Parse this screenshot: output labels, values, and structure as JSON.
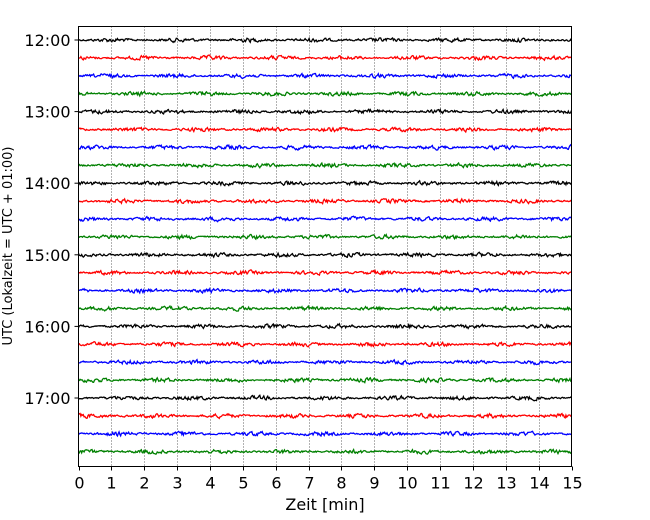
{
  "chart_data": {
    "type": "line",
    "description_kind": "helicorder seismogram",
    "xlabel": "Zeit  [min]",
    "ylabel": "UTC (Lokalzeit = UTC + 01:00)",
    "xlim": [
      0,
      15
    ],
    "x_ticks": [
      "0",
      "1",
      "2",
      "3",
      "4",
      "5",
      "6",
      "7",
      "8",
      "9",
      "10",
      "11",
      "12",
      "13",
      "14",
      "15"
    ],
    "y_tick_labels": [
      "12:00",
      "13:00",
      "14:00",
      "15:00",
      "16:00",
      "17:00"
    ],
    "grid": "vertical dotted lines at each minute",
    "traces_per_hour": 4,
    "trace_minutes": 15,
    "trace_colors": [
      "#000000",
      "#ff0000",
      "#0000ff",
      "#008000"
    ],
    "traces": [
      {
        "start": "12:00",
        "color": "#000000"
      },
      {
        "start": "12:15",
        "color": "#ff0000"
      },
      {
        "start": "12:30",
        "color": "#0000ff"
      },
      {
        "start": "12:45",
        "color": "#008000"
      },
      {
        "start": "13:00",
        "color": "#000000"
      },
      {
        "start": "13:15",
        "color": "#ff0000"
      },
      {
        "start": "13:30",
        "color": "#0000ff"
      },
      {
        "start": "13:45",
        "color": "#008000"
      },
      {
        "start": "14:00",
        "color": "#000000"
      },
      {
        "start": "14:15",
        "color": "#ff0000"
      },
      {
        "start": "14:30",
        "color": "#0000ff"
      },
      {
        "start": "14:45",
        "color": "#008000"
      },
      {
        "start": "15:00",
        "color": "#000000"
      },
      {
        "start": "15:15",
        "color": "#ff0000"
      },
      {
        "start": "15:30",
        "color": "#0000ff"
      },
      {
        "start": "15:45",
        "color": "#008000"
      },
      {
        "start": "16:00",
        "color": "#000000"
      },
      {
        "start": "16:15",
        "color": "#ff0000"
      },
      {
        "start": "16:30",
        "color": "#0000ff"
      },
      {
        "start": "16:45",
        "color": "#008000"
      },
      {
        "start": "17:00",
        "color": "#000000"
      },
      {
        "start": "17:15",
        "color": "#ff0000"
      },
      {
        "start": "17:30",
        "color": "#0000ff"
      },
      {
        "start": "17:45",
        "color": "#008000"
      }
    ]
  }
}
